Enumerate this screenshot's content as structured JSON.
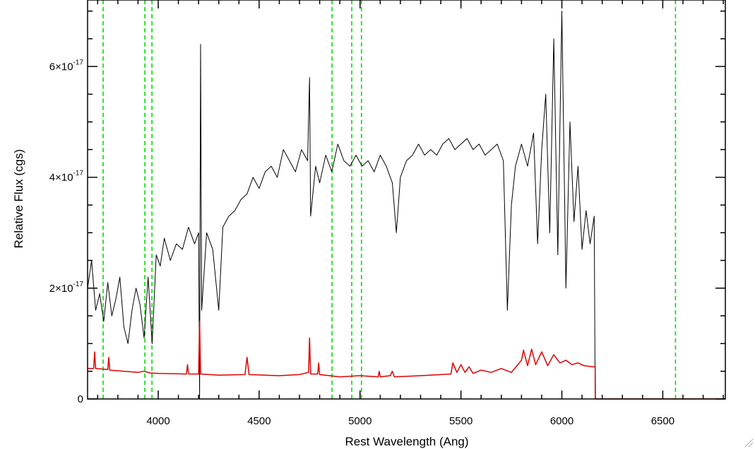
{
  "chart_data": {
    "type": "line",
    "title": "",
    "xlabel": "Rest Wavelength (Ang)",
    "ylabel": "Relative Flux (cgs)",
    "xlim": [
      3650,
      6810
    ],
    "ylim": [
      0,
      7.2e-17
    ],
    "x_ticks": [
      {
        "value": 4000,
        "label": "4000"
      },
      {
        "value": 4500,
        "label": "4500"
      },
      {
        "value": 5000,
        "label": "5000"
      },
      {
        "value": 5500,
        "label": "5500"
      },
      {
        "value": 6000,
        "label": "6000"
      },
      {
        "value": 6500,
        "label": "6500"
      }
    ],
    "y_ticks": [
      {
        "value": 0,
        "mantissa": "0",
        "exponent": ""
      },
      {
        "value": 2e-17,
        "mantissa": "2×10",
        "exponent": "-17"
      },
      {
        "value": 4e-17,
        "mantissa": "4×10",
        "exponent": "-17"
      },
      {
        "value": 6e-17,
        "mantissa": "6×10",
        "exponent": "-17"
      }
    ],
    "x_minor_step": 100,
    "y_minor_step": 5e-18,
    "reference_lines": {
      "color": "#00dd00",
      "style": "dashed",
      "x": [
        3727,
        3934,
        3969,
        4861,
        4959,
        5007,
        6563
      ]
    },
    "series": [
      {
        "color": "#000000",
        "points": [
          [
            3650,
            2e-17
          ],
          [
            3670,
            2.5e-17
          ],
          [
            3690,
            1.6e-17
          ],
          [
            3710,
            1.9e-17
          ],
          [
            3730,
            1.4e-17
          ],
          [
            3750,
            2.1e-17
          ],
          [
            3770,
            1.5e-17
          ],
          [
            3790,
            1.8e-17
          ],
          [
            3810,
            2.2e-17
          ],
          [
            3830,
            1.3e-17
          ],
          [
            3850,
            1e-17
          ],
          [
            3870,
            1.6e-17
          ],
          [
            3890,
            2e-17
          ],
          [
            3910,
            1.7e-17
          ],
          [
            3930,
            1.1e-17
          ],
          [
            3950,
            2.2e-17
          ],
          [
            3970,
            1e-17
          ],
          [
            3990,
            2.6e-17
          ],
          [
            4010,
            2.4e-17
          ],
          [
            4030,
            2.9e-17
          ],
          [
            4060,
            2.5e-17
          ],
          [
            4090,
            2.8e-17
          ],
          [
            4120,
            2.7e-17
          ],
          [
            4150,
            3.1e-17
          ],
          [
            4180,
            2.8e-17
          ],
          [
            4200,
            3e-17
          ],
          [
            4205,
            0.0
          ],
          [
            4210,
            6.4e-17
          ],
          [
            4215,
            1.6e-17
          ],
          [
            4240,
            3e-17
          ],
          [
            4270,
            2.7e-17
          ],
          [
            4300,
            1.6e-17
          ],
          [
            4320,
            3.1e-17
          ],
          [
            4350,
            3.3e-17
          ],
          [
            4380,
            3.4e-17
          ],
          [
            4410,
            3.6e-17
          ],
          [
            4440,
            3.7e-17
          ],
          [
            4470,
            4e-17
          ],
          [
            4500,
            3.8e-17
          ],
          [
            4530,
            4.1e-17
          ],
          [
            4560,
            4.2e-17
          ],
          [
            4590,
            4e-17
          ],
          [
            4620,
            4.5e-17
          ],
          [
            4650,
            4.3e-17
          ],
          [
            4680,
            4.1e-17
          ],
          [
            4710,
            4.5e-17
          ],
          [
            4740,
            4.3e-17
          ],
          [
            4750,
            5.8e-17
          ],
          [
            4755,
            3.3e-17
          ],
          [
            4780,
            4.2e-17
          ],
          [
            4800,
            3.9e-17
          ],
          [
            4830,
            4.4e-17
          ],
          [
            4860,
            4.1e-17
          ],
          [
            4890,
            4.6e-17
          ],
          [
            4920,
            4.3e-17
          ],
          [
            4950,
            4.2e-17
          ],
          [
            4980,
            4.4e-17
          ],
          [
            5010,
            4.2e-17
          ],
          [
            5040,
            4.3e-17
          ],
          [
            5070,
            4.1e-17
          ],
          [
            5100,
            4.4e-17
          ],
          [
            5130,
            4.2e-17
          ],
          [
            5160,
            3.9e-17
          ],
          [
            5180,
            3e-17
          ],
          [
            5200,
            4e-17
          ],
          [
            5230,
            4.3e-17
          ],
          [
            5260,
            4.4e-17
          ],
          [
            5290,
            4.6e-17
          ],
          [
            5320,
            4.4e-17
          ],
          [
            5350,
            4.5e-17
          ],
          [
            5380,
            4.4e-17
          ],
          [
            5410,
            4.6e-17
          ],
          [
            5440,
            4.7e-17
          ],
          [
            5470,
            4.5e-17
          ],
          [
            5500,
            4.6e-17
          ],
          [
            5530,
            4.7e-17
          ],
          [
            5560,
            4.5e-17
          ],
          [
            5590,
            4.6e-17
          ],
          [
            5620,
            4.4e-17
          ],
          [
            5650,
            4.5e-17
          ],
          [
            5680,
            4.6e-17
          ],
          [
            5710,
            4.3e-17
          ],
          [
            5730,
            1.6e-17
          ],
          [
            5750,
            3.5e-17
          ],
          [
            5770,
            4.2e-17
          ],
          [
            5800,
            4.6e-17
          ],
          [
            5830,
            4.2e-17
          ],
          [
            5860,
            4.8e-17
          ],
          [
            5880,
            2.8e-17
          ],
          [
            5900,
            4.5e-17
          ],
          [
            5920,
            5.5e-17
          ],
          [
            5940,
            3e-17
          ],
          [
            5960,
            6.5e-17
          ],
          [
            5980,
            2.6e-17
          ],
          [
            6000,
            7e-17
          ],
          [
            6020,
            2e-17
          ],
          [
            6040,
            5e-17
          ],
          [
            6060,
            3.2e-17
          ],
          [
            6080,
            4.2e-17
          ],
          [
            6100,
            2.7e-17
          ],
          [
            6120,
            3.4e-17
          ],
          [
            6140,
            2.8e-17
          ],
          [
            6160,
            3.3e-17
          ],
          [
            6165,
            0.0
          ],
          [
            6810,
            0.0
          ]
        ]
      },
      {
        "color": "#dd0000",
        "points": [
          [
            3650,
            5.5e-18
          ],
          [
            3680,
            5.5e-18
          ],
          [
            3685,
            8.5e-18
          ],
          [
            3690,
            5.5e-18
          ],
          [
            3750,
            5.3e-18
          ],
          [
            3755,
            7.5e-18
          ],
          [
            3760,
            5.2e-18
          ],
          [
            3900,
            4.8e-18
          ],
          [
            3930,
            5e-18
          ],
          [
            3960,
            4.7e-18
          ],
          [
            4000,
            4.6e-18
          ],
          [
            4140,
            4.5e-18
          ],
          [
            4145,
            6.2e-18
          ],
          [
            4150,
            4.5e-18
          ],
          [
            4200,
            4.5e-18
          ],
          [
            4205,
            1.4e-17
          ],
          [
            4210,
            4.5e-18
          ],
          [
            4300,
            4.3e-18
          ],
          [
            4430,
            4.4e-18
          ],
          [
            4440,
            7.5e-18
          ],
          [
            4450,
            4.4e-18
          ],
          [
            4600,
            4.2e-18
          ],
          [
            4700,
            4.4e-18
          ],
          [
            4745,
            4.8e-18
          ],
          [
            4750,
            1.1e-17
          ],
          [
            4755,
            4.5e-18
          ],
          [
            4790,
            4.5e-18
          ],
          [
            4795,
            6.5e-18
          ],
          [
            4800,
            4.4e-18
          ],
          [
            4900,
            4e-18
          ],
          [
            5000,
            4.2e-18
          ],
          [
            5090,
            4e-18
          ],
          [
            5095,
            5e-18
          ],
          [
            5100,
            4e-18
          ],
          [
            5150,
            4.2e-18
          ],
          [
            5160,
            5e-18
          ],
          [
            5170,
            4e-18
          ],
          [
            5300,
            4.2e-18
          ],
          [
            5450,
            4.5e-18
          ],
          [
            5460,
            6.5e-18
          ],
          [
            5480,
            4.8e-18
          ],
          [
            5500,
            6.2e-18
          ],
          [
            5520,
            4.8e-18
          ],
          [
            5540,
            5.8e-18
          ],
          [
            5560,
            4.6e-18
          ],
          [
            5600,
            5.2e-18
          ],
          [
            5650,
            4.8e-18
          ],
          [
            5700,
            5.5e-18
          ],
          [
            5750,
            4.8e-18
          ],
          [
            5800,
            7e-18
          ],
          [
            5810,
            8.8e-18
          ],
          [
            5830,
            6e-18
          ],
          [
            5850,
            9e-18
          ],
          [
            5870,
            6.2e-18
          ],
          [
            5900,
            8.5e-18
          ],
          [
            5930,
            6e-18
          ],
          [
            5960,
            8e-18
          ],
          [
            5990,
            6.5e-18
          ],
          [
            6020,
            7e-18
          ],
          [
            6050,
            6.2e-18
          ],
          [
            6080,
            6.5e-18
          ],
          [
            6110,
            6e-18
          ],
          [
            6150,
            5.8e-18
          ],
          [
            6165,
            5.8e-18
          ],
          [
            6166,
            0.0
          ],
          [
            6810,
            0.0
          ]
        ]
      }
    ]
  }
}
